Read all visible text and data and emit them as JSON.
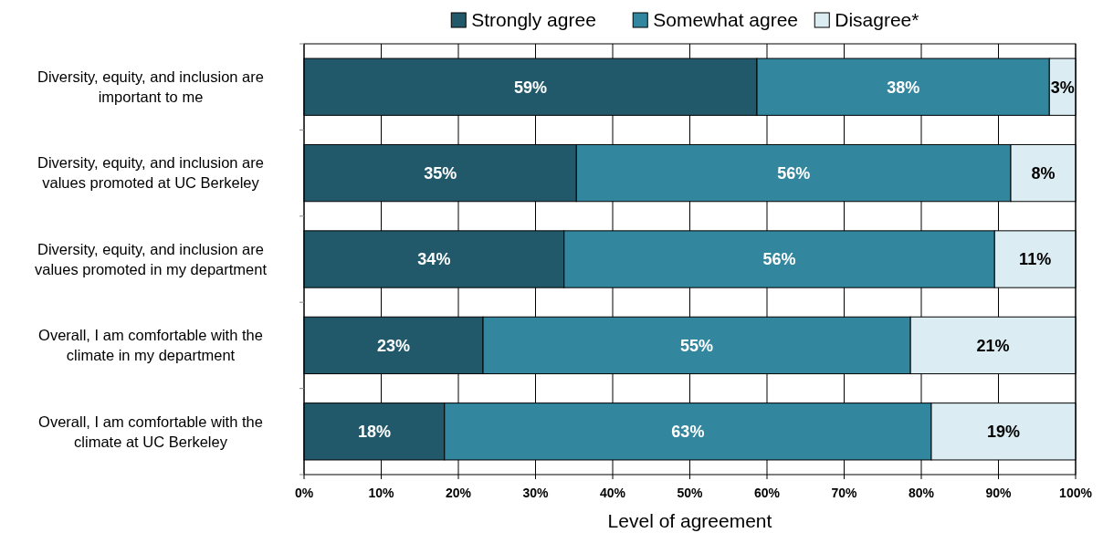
{
  "chart_data": {
    "type": "bar",
    "orientation": "horizontal",
    "stacked": true,
    "xlabel": "Level of agreement",
    "categories": [
      "Diversity, equity, and inclusion are important to me",
      "Diversity, equity, and inclusion are values promoted at UC Berkeley",
      "Diversity, equity, and inclusion are values promoted in my department",
      "Overall, I am comfortable with the climate in my department",
      "Overall, I am comfortable with the climate at UC Berkeley"
    ],
    "series": [
      {
        "name": "Strongly agree",
        "color": "#22596a",
        "values": [
          58.7,
          35.3,
          33.7,
          23.2,
          18.2
        ],
        "value_labels": [
          "59%",
          "35%",
          "34%",
          "23%",
          "18%"
        ]
      },
      {
        "name": "Somewhat agree",
        "color": "#32869e",
        "values": [
          37.9,
          56.3,
          55.8,
          55.4,
          63.1
        ],
        "value_labels": [
          "38%",
          "56%",
          "56%",
          "55%",
          "63%"
        ]
      },
      {
        "name": "Disagree*",
        "color": "#dbedf3",
        "values": [
          3.4,
          8.4,
          10.5,
          21.4,
          18.7
        ],
        "value_labels": [
          "3%",
          "8%",
          "11%",
          "21%",
          "19%"
        ]
      }
    ],
    "xlim": [
      0,
      100
    ],
    "xticks": [
      {
        "value": 0,
        "label": "0%"
      },
      {
        "value": 10,
        "label": "10%"
      },
      {
        "value": 20,
        "label": "20%"
      },
      {
        "value": 30,
        "label": "30%"
      },
      {
        "value": 40,
        "label": "40%"
      },
      {
        "value": 50,
        "label": "50%"
      },
      {
        "value": 60,
        "label": "60%"
      },
      {
        "value": 70,
        "label": "70%"
      },
      {
        "value": 80,
        "label": "80%"
      },
      {
        "value": 90,
        "label": "90%"
      },
      {
        "value": 100,
        "label": "100%"
      }
    ],
    "grid": "x",
    "legend": "top"
  }
}
